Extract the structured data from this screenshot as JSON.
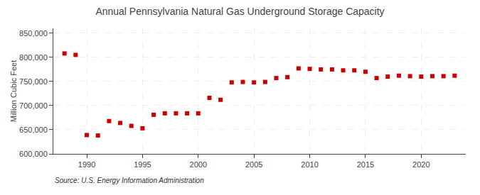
{
  "chart_data": {
    "type": "scatter",
    "title": "Annual Pennsylvania Natural Gas Underground Storage Capacity",
    "ylabel": "Million Cubic Feet",
    "annotations": [
      "Source: U.S. Energy Information Administration"
    ],
    "x": [
      1988,
      1989,
      1990,
      1991,
      1992,
      1993,
      1994,
      1995,
      1996,
      1997,
      1998,
      1999,
      2000,
      2001,
      2002,
      2003,
      2004,
      2005,
      2006,
      2007,
      2008,
      2009,
      2010,
      2011,
      2012,
      2013,
      2014,
      2015,
      2016,
      2017,
      2018,
      2019,
      2020,
      2021,
      2022,
      2023
    ],
    "values": [
      808000,
      805000,
      639000,
      638000,
      668000,
      664000,
      658000,
      653000,
      681000,
      684000,
      684000,
      684000,
      684000,
      716000,
      712000,
      748000,
      749000,
      748000,
      749000,
      757000,
      759000,
      777000,
      776000,
      775000,
      775000,
      773000,
      773000,
      770000,
      757000,
      760000,
      762000,
      761000,
      760000,
      761000,
      761000,
      762000
    ],
    "color": "#cc0000",
    "marker": "square",
    "xlim": [
      1987,
      2024
    ],
    "ylim": [
      600000,
      860000
    ],
    "xticks": [
      1990,
      1995,
      2000,
      2005,
      2010,
      2015,
      2020
    ],
    "yticks": [
      {
        "value": 600000,
        "label": "600,000"
      },
      {
        "value": 650000,
        "label": "650,000"
      },
      {
        "value": 700000,
        "label": "700,000"
      },
      {
        "value": 750000,
        "label": "750,000"
      },
      {
        "value": 800000,
        "label": "800,000"
      },
      {
        "value": 850000,
        "label": "850,000"
      }
    ],
    "grid": true
  }
}
